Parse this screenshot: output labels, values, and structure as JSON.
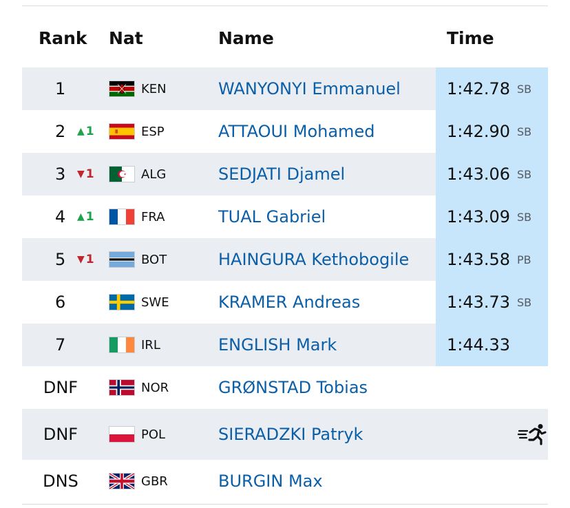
{
  "header": {
    "rank": "Rank",
    "nat": "Nat",
    "name": "Name",
    "time": "Time"
  },
  "results": [
    {
      "rank": "1",
      "move": "",
      "nat": "KEN",
      "flag": "kenya-flag-icon",
      "name": "WANYONYI Emmanuel",
      "time": "1:42.78",
      "record": "SB"
    },
    {
      "rank": "2",
      "move": "1",
      "move_dir": "up",
      "nat": "ESP",
      "flag": "spain-flag-icon",
      "name": "ATTAOUI Mohamed",
      "time": "1:42.90",
      "record": "SB"
    },
    {
      "rank": "3",
      "move": "1",
      "move_dir": "down",
      "nat": "ALG",
      "flag": "algeria-flag-icon",
      "name": "SEDJATI Djamel",
      "time": "1:43.06",
      "record": "SB"
    },
    {
      "rank": "4",
      "move": "1",
      "move_dir": "up",
      "nat": "FRA",
      "flag": "france-flag-icon",
      "name": "TUAL Gabriel",
      "time": "1:43.09",
      "record": "SB"
    },
    {
      "rank": "5",
      "move": "1",
      "move_dir": "down",
      "nat": "BOT",
      "flag": "botswana-flag-icon",
      "name": "HAINGURA Kethobogile",
      "time": "1:43.58",
      "record": "PB"
    },
    {
      "rank": "6",
      "move": "",
      "nat": "SWE",
      "flag": "sweden-flag-icon",
      "name": "KRAMER Andreas",
      "time": "1:43.73",
      "record": "SB"
    },
    {
      "rank": "7",
      "move": "",
      "nat": "IRL",
      "flag": "ireland-flag-icon",
      "name": "ENGLISH Mark",
      "time": "1:44.33",
      "record": ""
    },
    {
      "rank": "DNF",
      "nat": "NOR",
      "flag": "norway-flag-icon",
      "name": "GRØNSTAD Tobias"
    },
    {
      "rank": "DNF",
      "nat": "POL",
      "flag": "poland-flag-icon",
      "name": "SIERADZKI Patryk",
      "icon": "running-man-icon"
    },
    {
      "rank": "DNS",
      "nat": "GBR",
      "flag": "uk-flag-icon",
      "name": "BURGIN Max"
    }
  ],
  "move_arrows": {
    "up": "▲",
    "down": "▼"
  },
  "colors": {
    "accent_blue": "#0b5fa8",
    "time_highlight": "#c8e6fb",
    "row_alt": "#eaedf1",
    "up": "#1fa34a",
    "down": "#c0262d"
  }
}
